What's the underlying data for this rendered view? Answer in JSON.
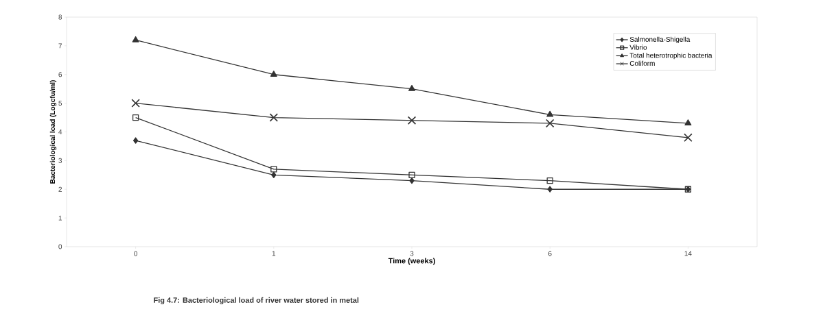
{
  "chart_data": {
    "type": "line",
    "xlabel": "Time (weeks)",
    "ylabel": "Bacteriological load (Logcfu/ml)",
    "categories": [
      "0",
      "1",
      "3",
      "6",
      "14"
    ],
    "series": [
      {
        "name": "Salmonella-Shigella",
        "color": "#333333",
        "marker": "diamond",
        "values": [
          3.7,
          2.5,
          2.3,
          2.0,
          2.0
        ]
      },
      {
        "name": "Vibrio",
        "color": "#333333",
        "marker": "square",
        "values": [
          4.5,
          2.7,
          2.5,
          2.3,
          2.0
        ]
      },
      {
        "name": "Total heterotrophic bacteria",
        "color": "#333333",
        "marker": "triangle",
        "values": [
          7.2,
          6.0,
          5.5,
          4.6,
          4.3
        ]
      },
      {
        "name": "Coliform",
        "color": "#333333",
        "marker": "cross",
        "values": [
          5.0,
          4.5,
          4.4,
          4.3,
          3.8
        ]
      }
    ],
    "ylim": [
      0,
      8
    ],
    "yticks": [
      0,
      1,
      2,
      3,
      4,
      5,
      6,
      7,
      8
    ],
    "grid": false,
    "legend": "top right",
    "annotations": [
      "Fig 4.7: Bacteriological load of river water stored in metal"
    ]
  }
}
